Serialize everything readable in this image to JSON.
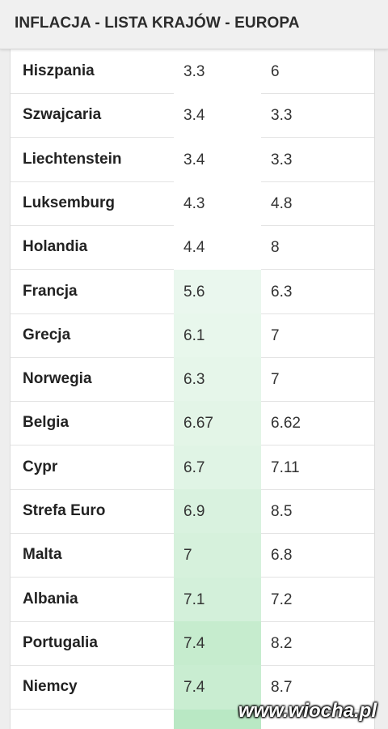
{
  "header": {
    "title": "INFLACJA - LISTA KRAJÓW - EUROPA"
  },
  "table": {
    "rows": [
      [
        "Hiszpania",
        "3.3",
        "6"
      ],
      [
        "Szwajcaria",
        "3.4",
        "3.3"
      ],
      [
        "Liechtenstein",
        "3.4",
        "3.3"
      ],
      [
        "Luksemburg",
        "4.3",
        "4.8"
      ],
      [
        "Holandia",
        "4.4",
        "8"
      ],
      [
        "Francja",
        "5.6",
        "6.3"
      ],
      [
        "Grecja",
        "6.1",
        "7"
      ],
      [
        "Norwegia",
        "6.3",
        "7"
      ],
      [
        "Belgia",
        "6.67",
        "6.62"
      ],
      [
        "Cypr",
        "6.7",
        "7.11"
      ],
      [
        "Strefa Euro",
        "6.9",
        "8.5"
      ],
      [
        "Malta",
        "7",
        "6.8"
      ],
      [
        "Albania",
        "7.1",
        "7.2"
      ],
      [
        "Portugalia",
        "7.4",
        "8.2"
      ],
      [
        "Niemcy",
        "7.4",
        "8.7"
      ]
    ],
    "highlight": [
      "#ffffff",
      "#ffffff",
      "#ffffff",
      "#ffffff",
      "#ffffff",
      "#eaf7ee",
      "#e8f7ec",
      "#e6f6ea",
      "#e3f5e7",
      "#e0f4e5",
      "#d9f2df",
      "#d6f1dc",
      "#d3f0da",
      "#c6ecce",
      "#c9edd1"
    ]
  },
  "watermark": "www.wiocha.pl"
}
